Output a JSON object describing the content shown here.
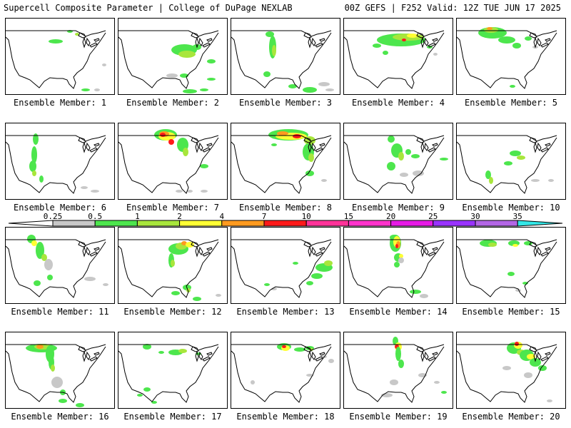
{
  "header": {
    "title_left": "Supercell Composite Parameter | College of DuPage NEXLAB",
    "title_right": "00Z GEFS | F252 Valid: 12Z TUE JUN 17 2025"
  },
  "legend": {
    "bins": [
      {
        "label": "0.25",
        "color": "#c8c8c8"
      },
      {
        "label": "0.5",
        "color": "#4de64d"
      },
      {
        "label": "1",
        "color": "#a8e63c"
      },
      {
        "label": "2",
        "color": "#ffff33"
      },
      {
        "label": "4",
        "color": "#ff9a1f"
      },
      {
        "label": "7",
        "color": "#ff1a1a"
      },
      {
        "label": "10",
        "color": "#ff3399"
      },
      {
        "label": "15",
        "color": "#ff33cc"
      },
      {
        "label": "20",
        "color": "#e61ae6"
      },
      {
        "label": "25",
        "color": "#9933ff"
      },
      {
        "label": "30",
        "color": "#b366e6"
      },
      {
        "label": "35",
        "color": "#33e6e6"
      }
    ]
  },
  "members": [
    {
      "label": "Ensemble Member: 1"
    },
    {
      "label": "Ensemble Member: 2"
    },
    {
      "label": "Ensemble Member: 3"
    },
    {
      "label": "Ensemble Member: 4"
    },
    {
      "label": "Ensemble Member: 5"
    },
    {
      "label": "Ensemble Member: 6"
    },
    {
      "label": "Ensemble Member: 7"
    },
    {
      "label": "Ensemble Member: 8"
    },
    {
      "label": "Ensemble Member: 9"
    },
    {
      "label": "Ensemble Member: 10"
    },
    {
      "label": "Ensemble Member: 11"
    },
    {
      "label": "Ensemble Member: 12"
    },
    {
      "label": "Ensemble Member: 13"
    },
    {
      "label": "Ensemble Member: 14"
    },
    {
      "label": "Ensemble Member: 15"
    },
    {
      "label": "Ensemble Member: 16"
    },
    {
      "label": "Ensemble Member: 17"
    },
    {
      "label": "Ensemble Member: 18"
    },
    {
      "label": "Ensemble Member: 19"
    },
    {
      "label": "Ensemble Member: 20"
    }
  ]
}
